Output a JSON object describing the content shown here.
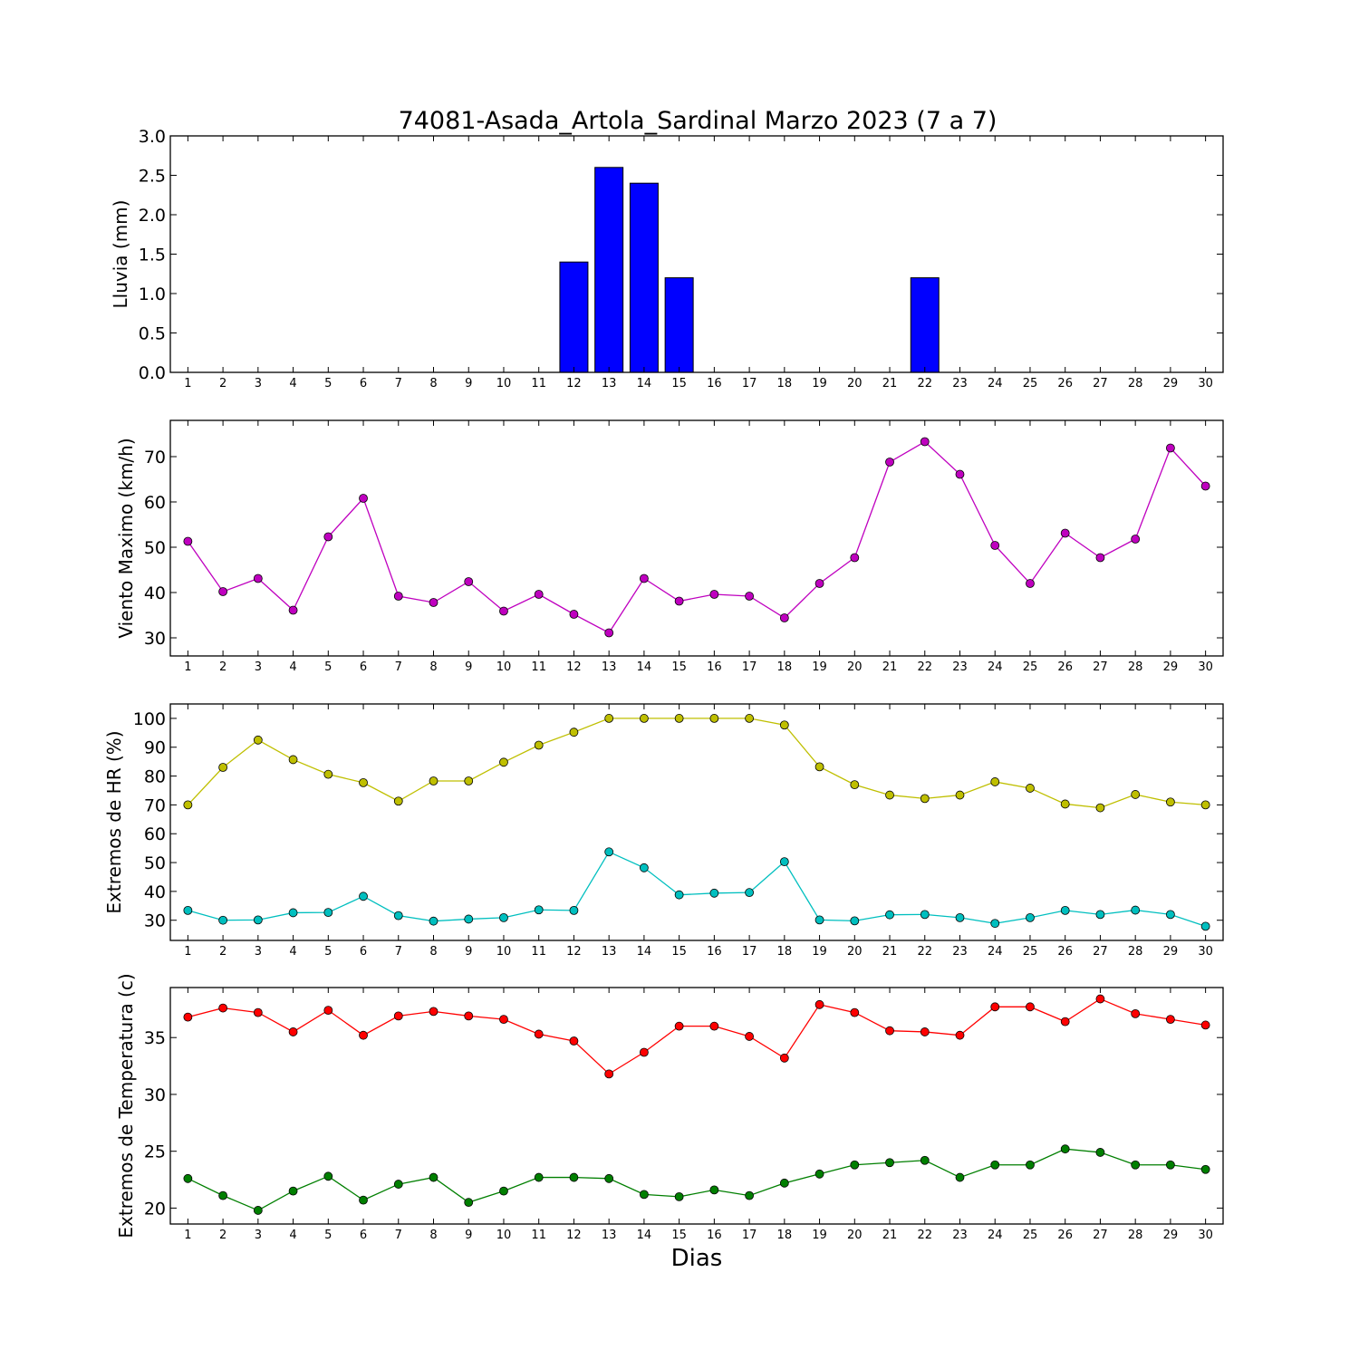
{
  "title": "74081-Asada_Artola_Sardinal Marzo 2023  (7 a 7)",
  "xlabel": "Dias",
  "chart_data": [
    {
      "type": "bar",
      "ylabel": "Lluvia (mm)",
      "ylim": [
        0,
        3.0
      ],
      "yticks": [
        "0.0",
        "0.5",
        "1.0",
        "1.5",
        "2.0",
        "2.5",
        "3.0"
      ],
      "ytick_values": [
        0,
        0.5,
        1.0,
        1.5,
        2.0,
        2.5,
        3.0
      ],
      "categories": [
        "1",
        "2",
        "3",
        "4",
        "5",
        "6",
        "7",
        "8",
        "9",
        "10",
        "11",
        "12",
        "13",
        "14",
        "15",
        "16",
        "17",
        "18",
        "19",
        "20",
        "21",
        "22",
        "23",
        "24",
        "25",
        "26",
        "27",
        "28",
        "29",
        "30"
      ],
      "series": [
        {
          "color": "#0000ff",
          "values": [
            0,
            0,
            0,
            0,
            0,
            0,
            0,
            0,
            0,
            0,
            0,
            1.4,
            2.6,
            2.4,
            1.2,
            0,
            0,
            0,
            0,
            0,
            0,
            1.2,
            0,
            0,
            0,
            0,
            0,
            0,
            0,
            0
          ]
        }
      ]
    },
    {
      "type": "line",
      "ylabel": "Viento Maximo (km/h)",
      "ylim": [
        26,
        78
      ],
      "yticks": [
        "30",
        "40",
        "50",
        "60",
        "70"
      ],
      "ytick_values": [
        30,
        40,
        50,
        60,
        70
      ],
      "categories": [
        "1",
        "2",
        "3",
        "4",
        "5",
        "6",
        "7",
        "8",
        "9",
        "10",
        "11",
        "12",
        "13",
        "14",
        "15",
        "16",
        "17",
        "18",
        "19",
        "20",
        "21",
        "22",
        "23",
        "24",
        "25",
        "26",
        "27",
        "28",
        "29",
        "30"
      ],
      "series": [
        {
          "color": "#bf00bf",
          "values": [
            51.3,
            40.2,
            43.1,
            36.1,
            52.3,
            60.8,
            39.2,
            37.8,
            42.4,
            35.9,
            39.6,
            35.2,
            31.1,
            43.1,
            38.1,
            39.6,
            39.2,
            34.4,
            42.0,
            47.7,
            68.8,
            73.3,
            66.1,
            50.4,
            42.0,
            53.1,
            47.7,
            51.8,
            71.9,
            63.5
          ]
        }
      ]
    },
    {
      "type": "line",
      "ylabel": "Extremos de HR (%)",
      "ylim": [
        23,
        105
      ],
      "yticks": [
        "30",
        "40",
        "50",
        "60",
        "70",
        "80",
        "90",
        "100"
      ],
      "ytick_values": [
        30,
        40,
        50,
        60,
        70,
        80,
        90,
        100
      ],
      "categories": [
        "1",
        "2",
        "3",
        "4",
        "5",
        "6",
        "7",
        "8",
        "9",
        "10",
        "11",
        "12",
        "13",
        "14",
        "15",
        "16",
        "17",
        "18",
        "19",
        "20",
        "21",
        "22",
        "23",
        "24",
        "25",
        "26",
        "27",
        "28",
        "29",
        "30"
      ],
      "series": [
        {
          "color": "#bfbf00",
          "values": [
            70,
            83,
            92.5,
            85.7,
            80.6,
            77.7,
            71.3,
            78.3,
            78.3,
            84.8,
            90.7,
            95.2,
            100,
            100,
            100,
            100,
            100,
            97.7,
            83.2,
            77.0,
            73.4,
            72.2,
            73.4,
            78.0,
            75.8,
            70.3,
            69.0,
            73.6,
            71.0,
            70.0
          ]
        },
        {
          "color": "#00bfbf",
          "values": [
            33.4,
            30.0,
            30.1,
            32.6,
            32.7,
            38.3,
            31.6,
            29.7,
            30.4,
            30.9,
            33.6,
            33.4,
            53.7,
            48.2,
            38.8,
            39.4,
            39.6,
            50.3,
            30.1,
            29.8,
            31.9,
            32.0,
            30.9,
            28.9,
            30.9,
            33.4,
            32.0,
            33.5,
            32.0,
            27.9
          ]
        }
      ]
    },
    {
      "type": "line",
      "ylabel": "Extremos de Temperatura (c)",
      "ylim": [
        18.6,
        39.4
      ],
      "yticks": [
        "20",
        "25",
        "30",
        "35"
      ],
      "ytick_values": [
        20,
        25,
        30,
        35
      ],
      "categories": [
        "1",
        "2",
        "3",
        "4",
        "5",
        "6",
        "7",
        "8",
        "9",
        "10",
        "11",
        "12",
        "13",
        "14",
        "15",
        "16",
        "17",
        "18",
        "19",
        "20",
        "21",
        "22",
        "23",
        "24",
        "25",
        "26",
        "27",
        "28",
        "29",
        "30"
      ],
      "series": [
        {
          "color": "#ff0000",
          "values": [
            36.8,
            37.6,
            37.2,
            35.5,
            37.4,
            35.2,
            36.9,
            37.3,
            36.9,
            36.6,
            35.3,
            34.7,
            31.8,
            33.7,
            36.0,
            36.0,
            35.1,
            33.2,
            37.9,
            37.2,
            35.6,
            35.5,
            35.2,
            37.7,
            37.7,
            36.4,
            38.4,
            37.1,
            36.6,
            36.1
          ]
        },
        {
          "color": "#007f00",
          "values": [
            22.6,
            21.1,
            19.8,
            21.5,
            22.8,
            20.7,
            22.1,
            22.7,
            20.5,
            21.5,
            22.7,
            22.7,
            22.6,
            21.2,
            21.0,
            21.6,
            21.1,
            22.2,
            23.0,
            23.8,
            24.0,
            24.2,
            22.7,
            23.8,
            23.8,
            25.2,
            24.9,
            23.8,
            23.8,
            23.4
          ]
        }
      ]
    }
  ]
}
